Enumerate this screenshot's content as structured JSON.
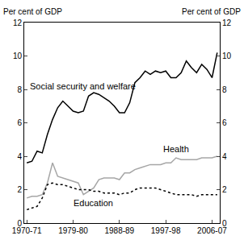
{
  "chart_data": {
    "type": "line",
    "y_label": "Per cent of GDP",
    "y2_label": "Per cent of GDP",
    "categories": [
      "1970-71",
      null,
      null,
      null,
      null,
      null,
      null,
      null,
      null,
      "1979-80",
      null,
      null,
      null,
      null,
      null,
      null,
      null,
      null,
      "1988-89",
      null,
      null,
      null,
      null,
      null,
      null,
      null,
      null,
      "1997-98",
      null,
      null,
      null,
      null,
      null,
      null,
      null,
      null,
      "2006-07",
      null
    ],
    "series": [
      {
        "name": "Social security and welfare",
        "color": "#000000",
        "line_style": "solid",
        "values": [
          3.6,
          3.7,
          4.3,
          4.2,
          5.3,
          6.2,
          6.9,
          7.3,
          7.0,
          6.7,
          6.6,
          6.7,
          7.6,
          7.8,
          7.7,
          7.5,
          7.3,
          7.0,
          6.6,
          6.6,
          7.2,
          8.4,
          8.7,
          9.1,
          8.9,
          9.1,
          9.0,
          9.1,
          8.7,
          8.7,
          9.0,
          9.7,
          9.3,
          9.0,
          9.5,
          9.2,
          8.7,
          10.2
        ]
      },
      {
        "name": "Health",
        "color": "#a6a6a6",
        "line_style": "solid",
        "values": [
          1.5,
          1.6,
          1.6,
          1.7,
          2.4,
          3.6,
          2.8,
          2.7,
          2.6,
          2.5,
          2.4,
          1.7,
          1.9,
          2.1,
          2.6,
          2.7,
          2.7,
          2.7,
          2.6,
          3.0,
          3.0,
          3.2,
          3.3,
          3.4,
          3.5,
          3.5,
          3.5,
          3.6,
          3.6,
          3.9,
          3.8,
          3.8,
          3.8,
          3.8,
          3.9,
          3.9,
          3.9,
          4.0
        ]
      },
      {
        "name": "Education",
        "color": "#000000",
        "line_style": "dotted",
        "values": [
          0.8,
          0.9,
          1.0,
          1.5,
          2.3,
          2.4,
          2.3,
          2.3,
          2.2,
          2.1,
          2.0,
          2.0,
          2.0,
          1.9,
          1.9,
          1.8,
          1.8,
          1.8,
          1.7,
          1.8,
          1.8,
          2.0,
          2.1,
          2.1,
          2.1,
          2.1,
          2.0,
          1.9,
          1.8,
          1.7,
          1.7,
          1.7,
          1.7,
          1.6,
          1.7,
          1.7,
          1.7,
          1.7
        ]
      }
    ],
    "ylim": [
      0,
      12
    ],
    "yticks": [
      0,
      2,
      4,
      6,
      8,
      10,
      12
    ],
    "y2lim": [
      0,
      12
    ],
    "y2ticks": [
      0,
      2,
      4,
      6,
      8,
      10,
      12
    ],
    "grid": false
  }
}
